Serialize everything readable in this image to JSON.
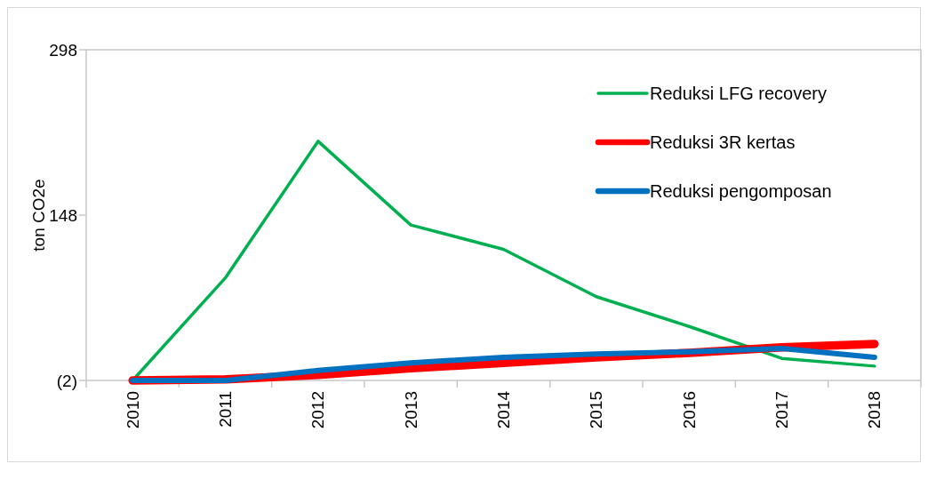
{
  "chart_data": {
    "type": "line",
    "ylabel": "ton CO2e",
    "categories": [
      "2010",
      "2011",
      "2012",
      "2013",
      "2014",
      "2015",
      "2016",
      "2017",
      "2018"
    ],
    "series": [
      {
        "name": "Reduksi LFG recovery",
        "color": "#00b050",
        "values": [
          -2,
          91,
          215,
          139,
          117,
          74,
          47,
          18,
          11
        ]
      },
      {
        "name": "Reduksi 3R kertas",
        "color": "#ff0000",
        "values": [
          -2,
          -1,
          3,
          9,
          14,
          19,
          23,
          28,
          31
        ]
      },
      {
        "name": "Reduksi pengomposan",
        "color": "#0070c0",
        "values": [
          -2,
          -2,
          7,
          14,
          19,
          22,
          24,
          27,
          19
        ]
      }
    ],
    "ylim": [
      -2,
      298
    ],
    "yticks": [
      {
        "value": -2,
        "label": "(2)"
      },
      148,
      298
    ],
    "grid": false,
    "legend": "top right",
    "marker": "none",
    "line_style": "solid"
  }
}
